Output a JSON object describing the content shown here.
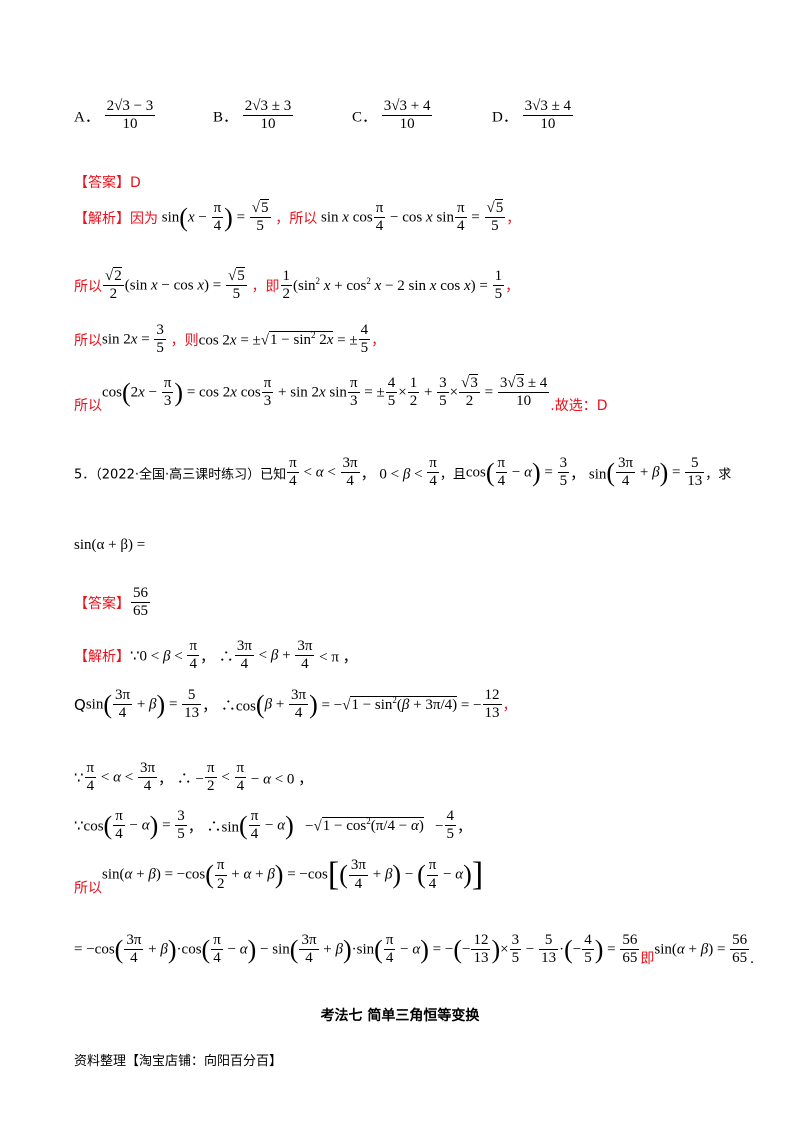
{
  "options": [
    {
      "letter": "A．",
      "num": "2√3 − 3",
      "den": "10"
    },
    {
      "letter": "B．",
      "num": "2√3 ± 3",
      "den": "10"
    },
    {
      "letter": "C．",
      "num": "3√3 + 4",
      "den": "10"
    },
    {
      "letter": "D．",
      "num": "3√3 ± 4",
      "den": "10"
    }
  ],
  "q4": {
    "answer_label": "【答案】D",
    "analysis_label": "【解析】因为",
    "w_suoyi": "，所以",
    "w_ji": "，即",
    "w_ze": "，则",
    "suoyi": "所以",
    "guxuan": ".故选：D",
    "comma": "，"
  },
  "q5": {
    "number": "5．",
    "source": "（2022·全国·高三课时练习）已知",
    "qie": "，且",
    "qiu": "，求",
    "eq": "sin(α + β) =",
    "answer_label": "【答案】",
    "answer_num": "56",
    "answer_den": "65",
    "analysis_label": "【解析】",
    "suoyi": "所以",
    "ji": "即",
    "Q": "Q"
  },
  "section_title": "考法七  简单三角恒等变换",
  "footer": "资料整理【淘宝店铺：向阳百分百】"
}
